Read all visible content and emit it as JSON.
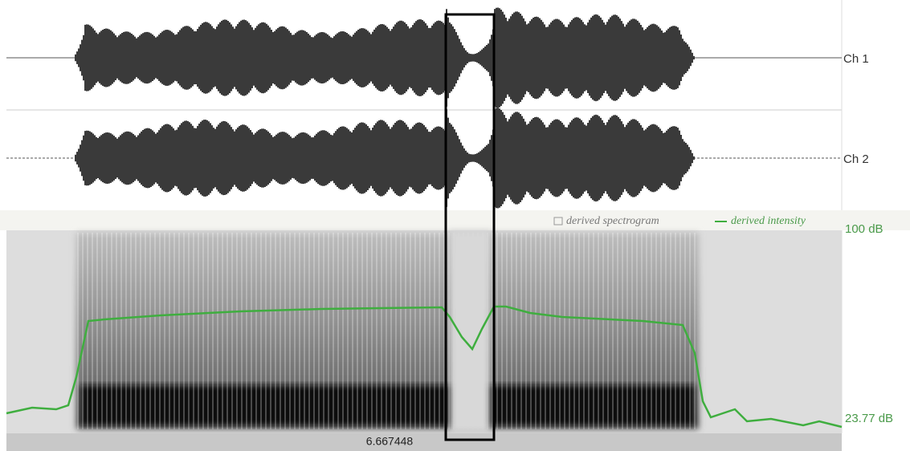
{
  "channels": [
    {
      "label": "Ch 1"
    },
    {
      "label": "Ch 2"
    }
  ],
  "legend": {
    "spectrogram": "derived spectrogram",
    "intensity": "derived intensity"
  },
  "intensity_axis": {
    "top": "100 dB",
    "bottom": "23.77 dB"
  },
  "cursor_time": "6.667448"
}
